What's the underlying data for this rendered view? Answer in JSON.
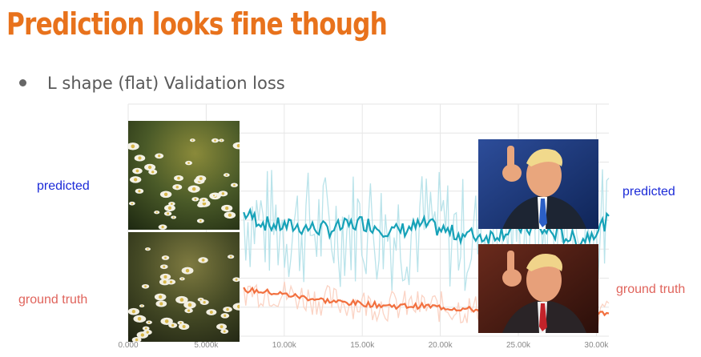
{
  "slide": {
    "title": "Prediction looks fine though",
    "bullet": "L shape (flat) Validation loss"
  },
  "labels": {
    "left_predicted": "predicted",
    "left_ground_truth": "ground truth",
    "right_predicted": "predicted",
    "right_ground_truth": "ground truth"
  },
  "colors": {
    "title": "#e8721c",
    "predicted_label": "#1c2bd8",
    "ground_truth_label": "#e0645c",
    "val_series": "#17a2b8",
    "val_raw": "#b9e3ea",
    "train_series": "#f2703f",
    "train_raw": "#fbd3c4"
  },
  "images": {
    "daisy_predicted": "daisy-field-photo",
    "daisy_ground_truth": "daisy-field-photo",
    "person_predicted": "person-pointing-photo",
    "person_ground_truth": "person-pointing-photo"
  },
  "chart_data": {
    "type": "line",
    "x_ticks": [
      "0.000",
      "5.000k",
      "10.00k",
      "15.00k",
      "20.00k",
      "25.00k",
      "30.00k"
    ],
    "x_tick_values": [
      0,
      5000,
      10000,
      15000,
      20000,
      25000,
      30000
    ],
    "xlim": [
      0,
      30800
    ],
    "ylim": [
      0,
      1
    ],
    "grid": true,
    "series": [
      {
        "x": [
          7400,
          9000,
          11000,
          13000,
          15000,
          17000,
          19000,
          21000,
          23000,
          25000,
          27000,
          29000,
          30800
        ],
        "values": [
          0.53,
          0.48,
          0.47,
          0.46,
          0.49,
          0.45,
          0.48,
          0.44,
          0.43,
          0.47,
          0.45,
          0.41,
          0.5
        ]
      },
      {
        "x": [
          7400,
          9000,
          11000,
          13000,
          15000,
          17000,
          19000,
          21000,
          23000,
          25000,
          27000,
          29000,
          30800
        ],
        "values": [
          0.2,
          0.19,
          0.17,
          0.15,
          0.14,
          0.13,
          0.13,
          0.12,
          0.11,
          0.1,
          0.1,
          0.1,
          0.1
        ]
      }
    ]
  }
}
